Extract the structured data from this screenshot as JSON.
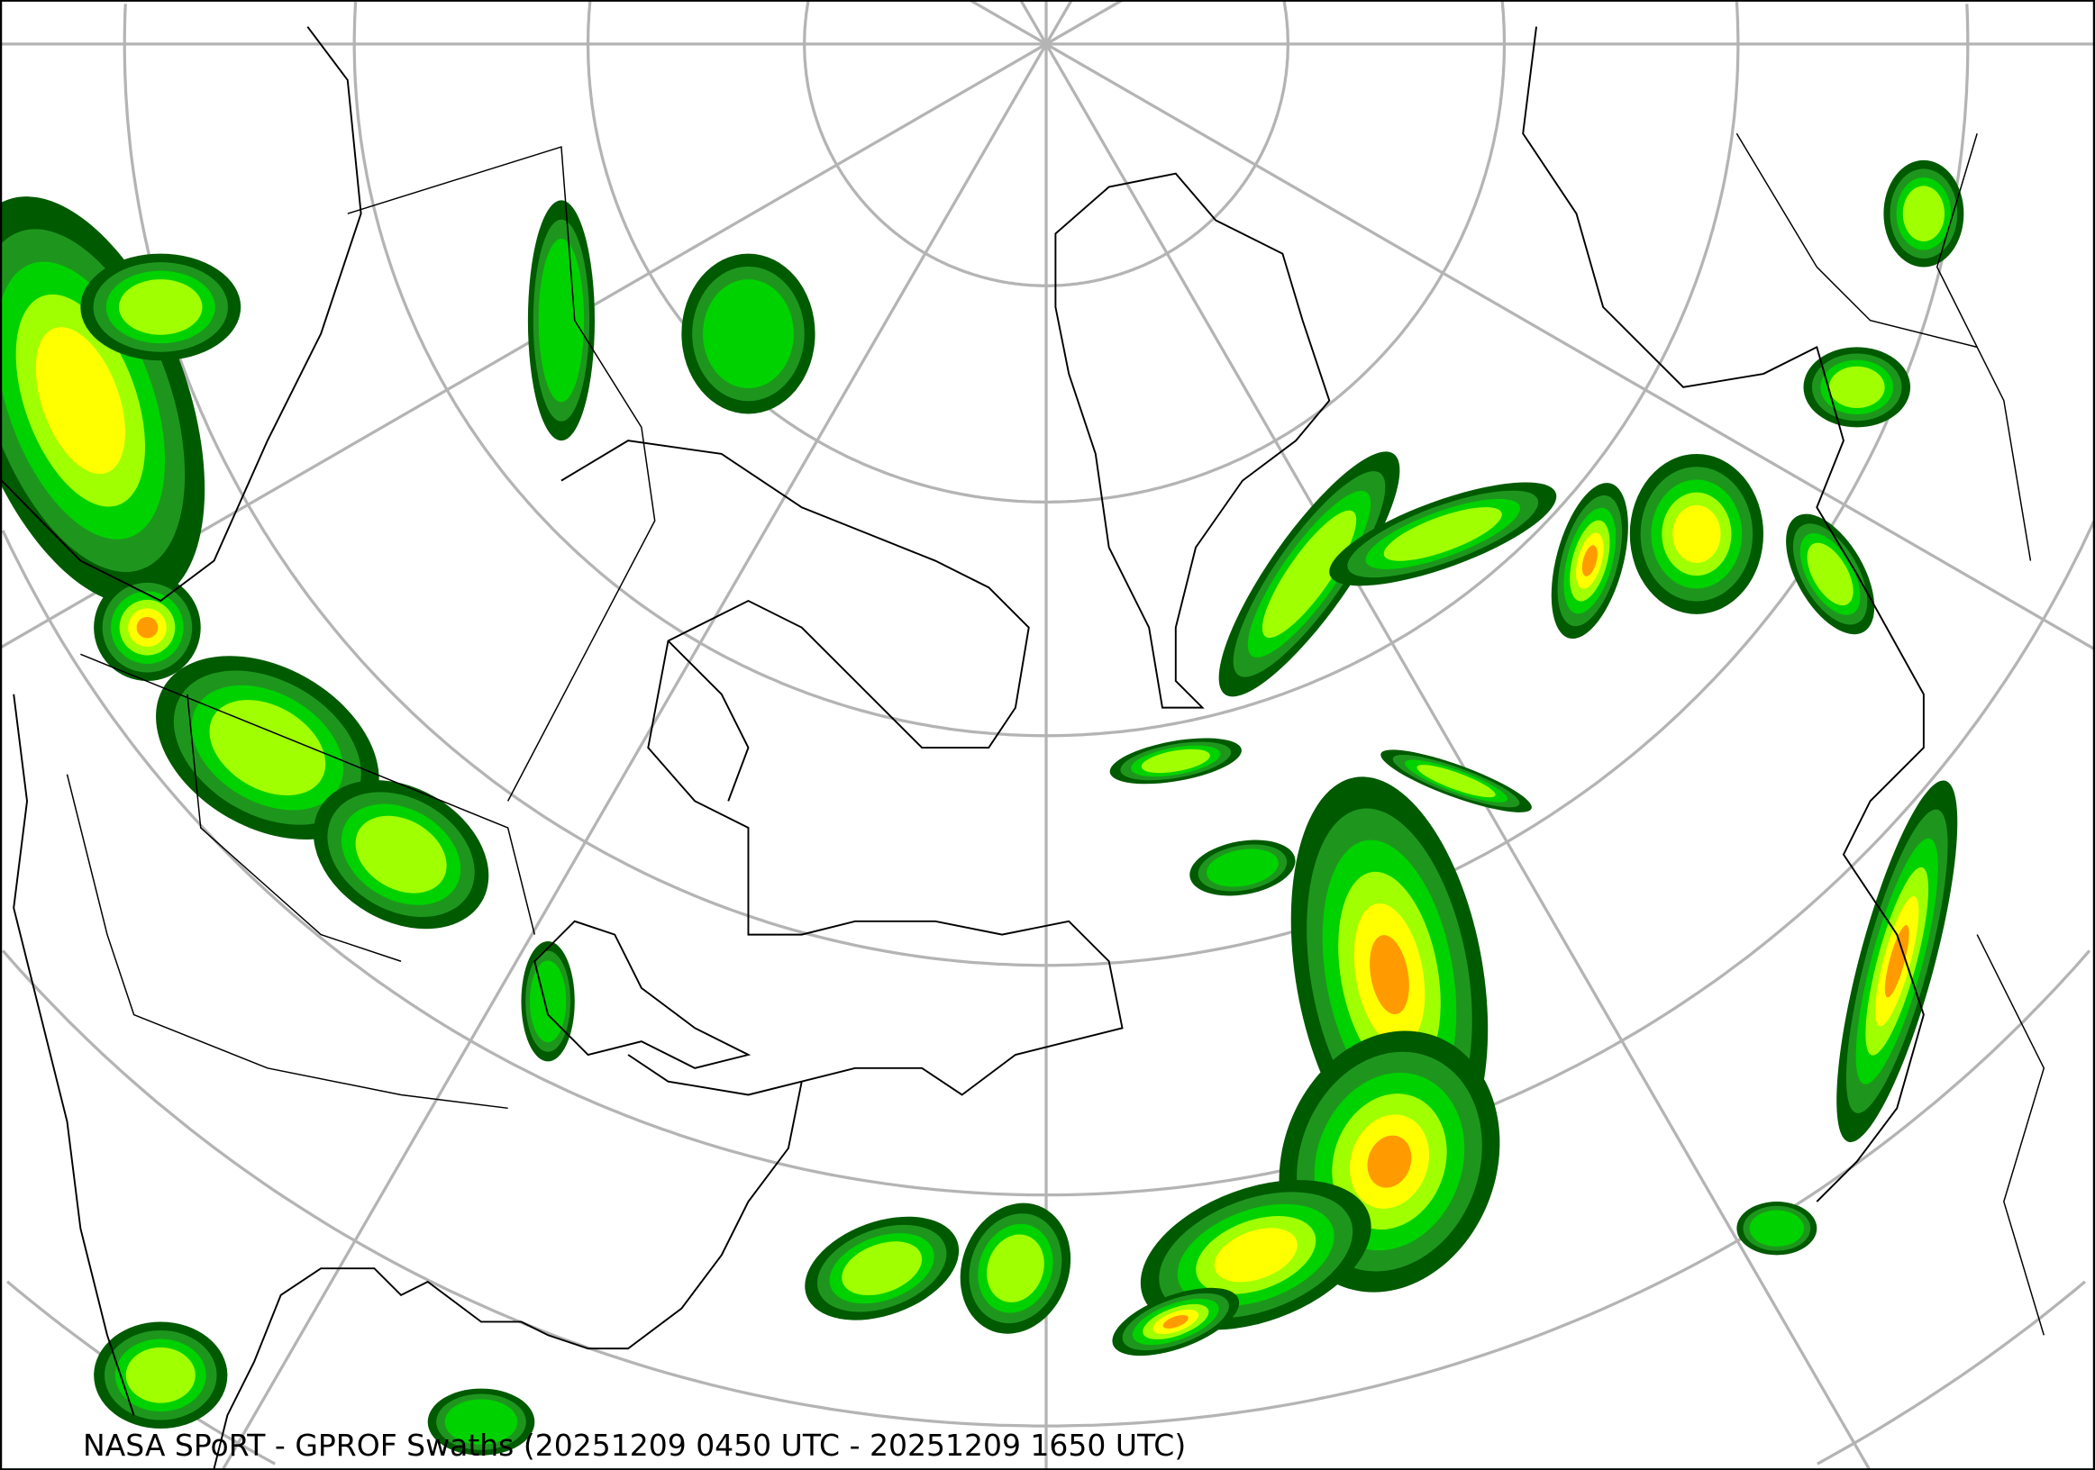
{
  "title": "NASA SPoRT - GPROF Swaths (20251209 0450 UTC - 20251209 1650 UTC)",
  "map": {
    "projection": "polar stereographic (north polar)",
    "graticule_color": "#b4b4b4",
    "coastline_color": "#000000",
    "background_color": "#ffffff",
    "precip_colors": [
      "#005a00",
      "#1e961e",
      "#00d200",
      "#a0ff00",
      "#ffff00",
      "#ff9b00",
      "#ff0000"
    ]
  }
}
